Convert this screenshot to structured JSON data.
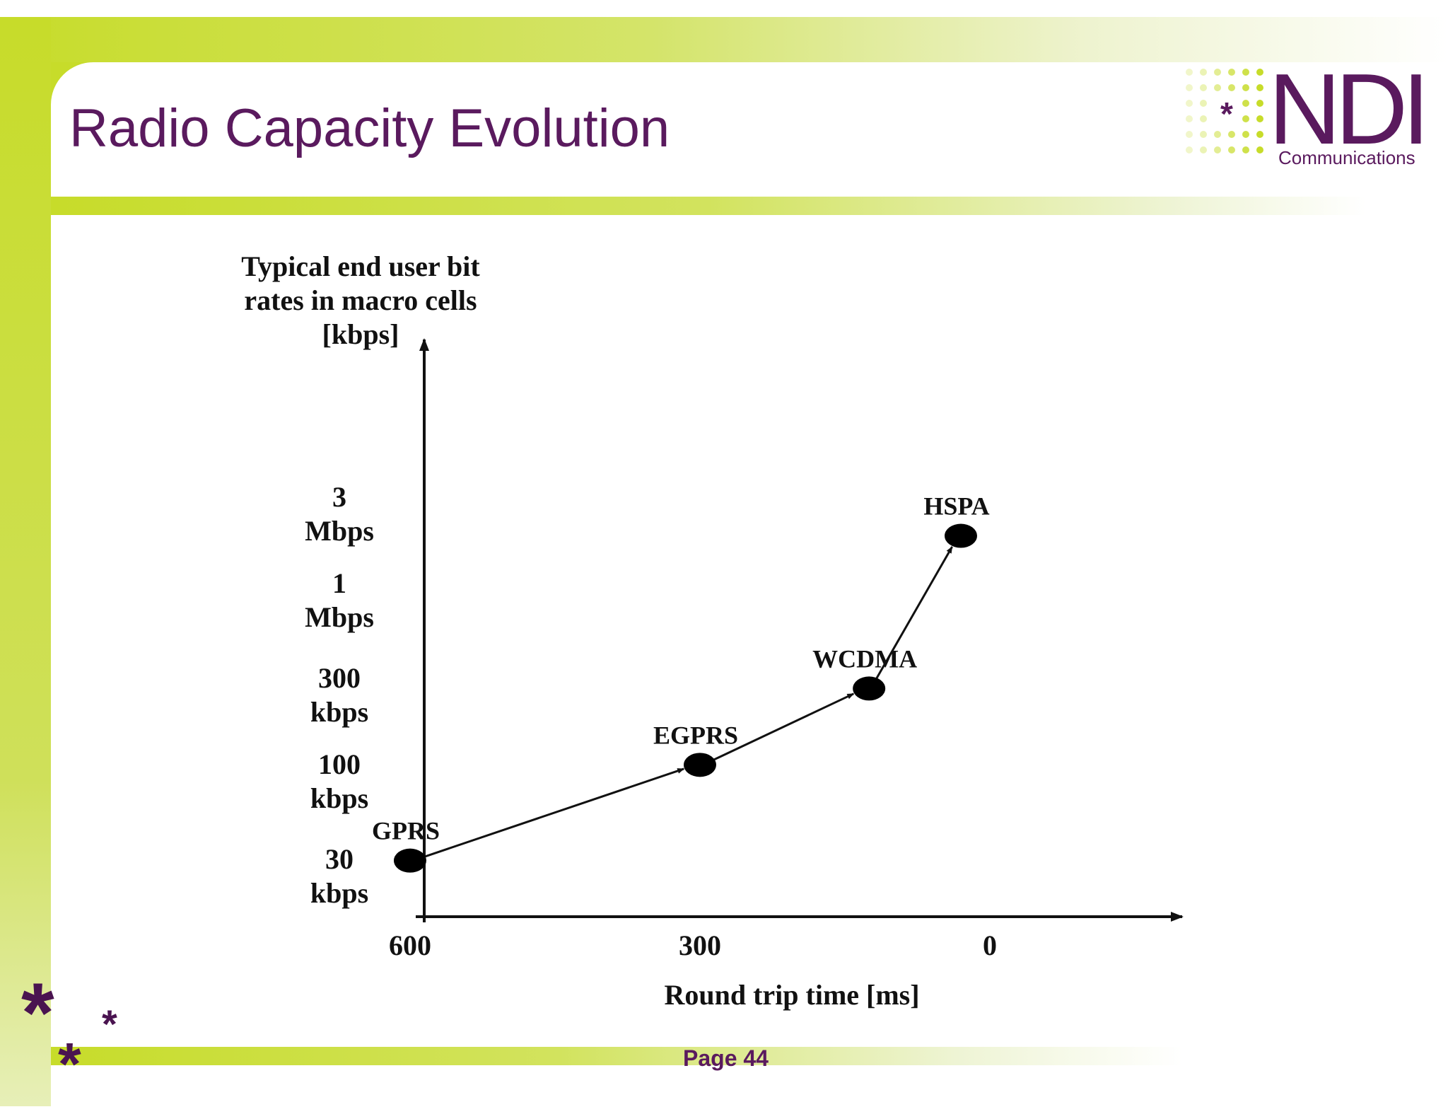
{
  "slide": {
    "title": "Radio Capacity Evolution",
    "page_label": "Page 44"
  },
  "logo": {
    "wordmark": "NDI",
    "subtitle": "Communications",
    "star": "*"
  },
  "colors": {
    "accent_green": "#c7dc2a",
    "brand_purple": "#5a1a5e"
  },
  "chart_data": {
    "type": "line",
    "title": "",
    "ylabel_lines": [
      "Typical end user bit",
      "rates in macro cells",
      "[kbps]"
    ],
    "xlabel": "Round trip time [ms]",
    "x_ticks": [
      {
        "value": 600,
        "label": "600"
      },
      {
        "value": 300,
        "label": "300"
      },
      {
        "value": 0,
        "label": "0"
      }
    ],
    "x_reversed": true,
    "y_scale": "log",
    "y_ticks": [
      {
        "value": 30,
        "lines": [
          "30",
          "kbps"
        ]
      },
      {
        "value": 100,
        "lines": [
          "100",
          "kbps"
        ]
      },
      {
        "value": 300,
        "lines": [
          "300",
          "kbps"
        ]
      },
      {
        "value": 1000,
        "lines": [
          "1",
          "Mbps"
        ]
      },
      {
        "value": 3000,
        "lines": [
          "3",
          "Mbps"
        ]
      }
    ],
    "points": [
      {
        "label": "GPRS",
        "x": 600,
        "y": 37
      },
      {
        "label": "EGPRS",
        "x": 300,
        "y": 125
      },
      {
        "label": "WCDMA",
        "x": 125,
        "y": 330
      },
      {
        "label": "HSPA",
        "x": 30,
        "y": 2300
      }
    ],
    "grid": false,
    "legend": "none"
  }
}
